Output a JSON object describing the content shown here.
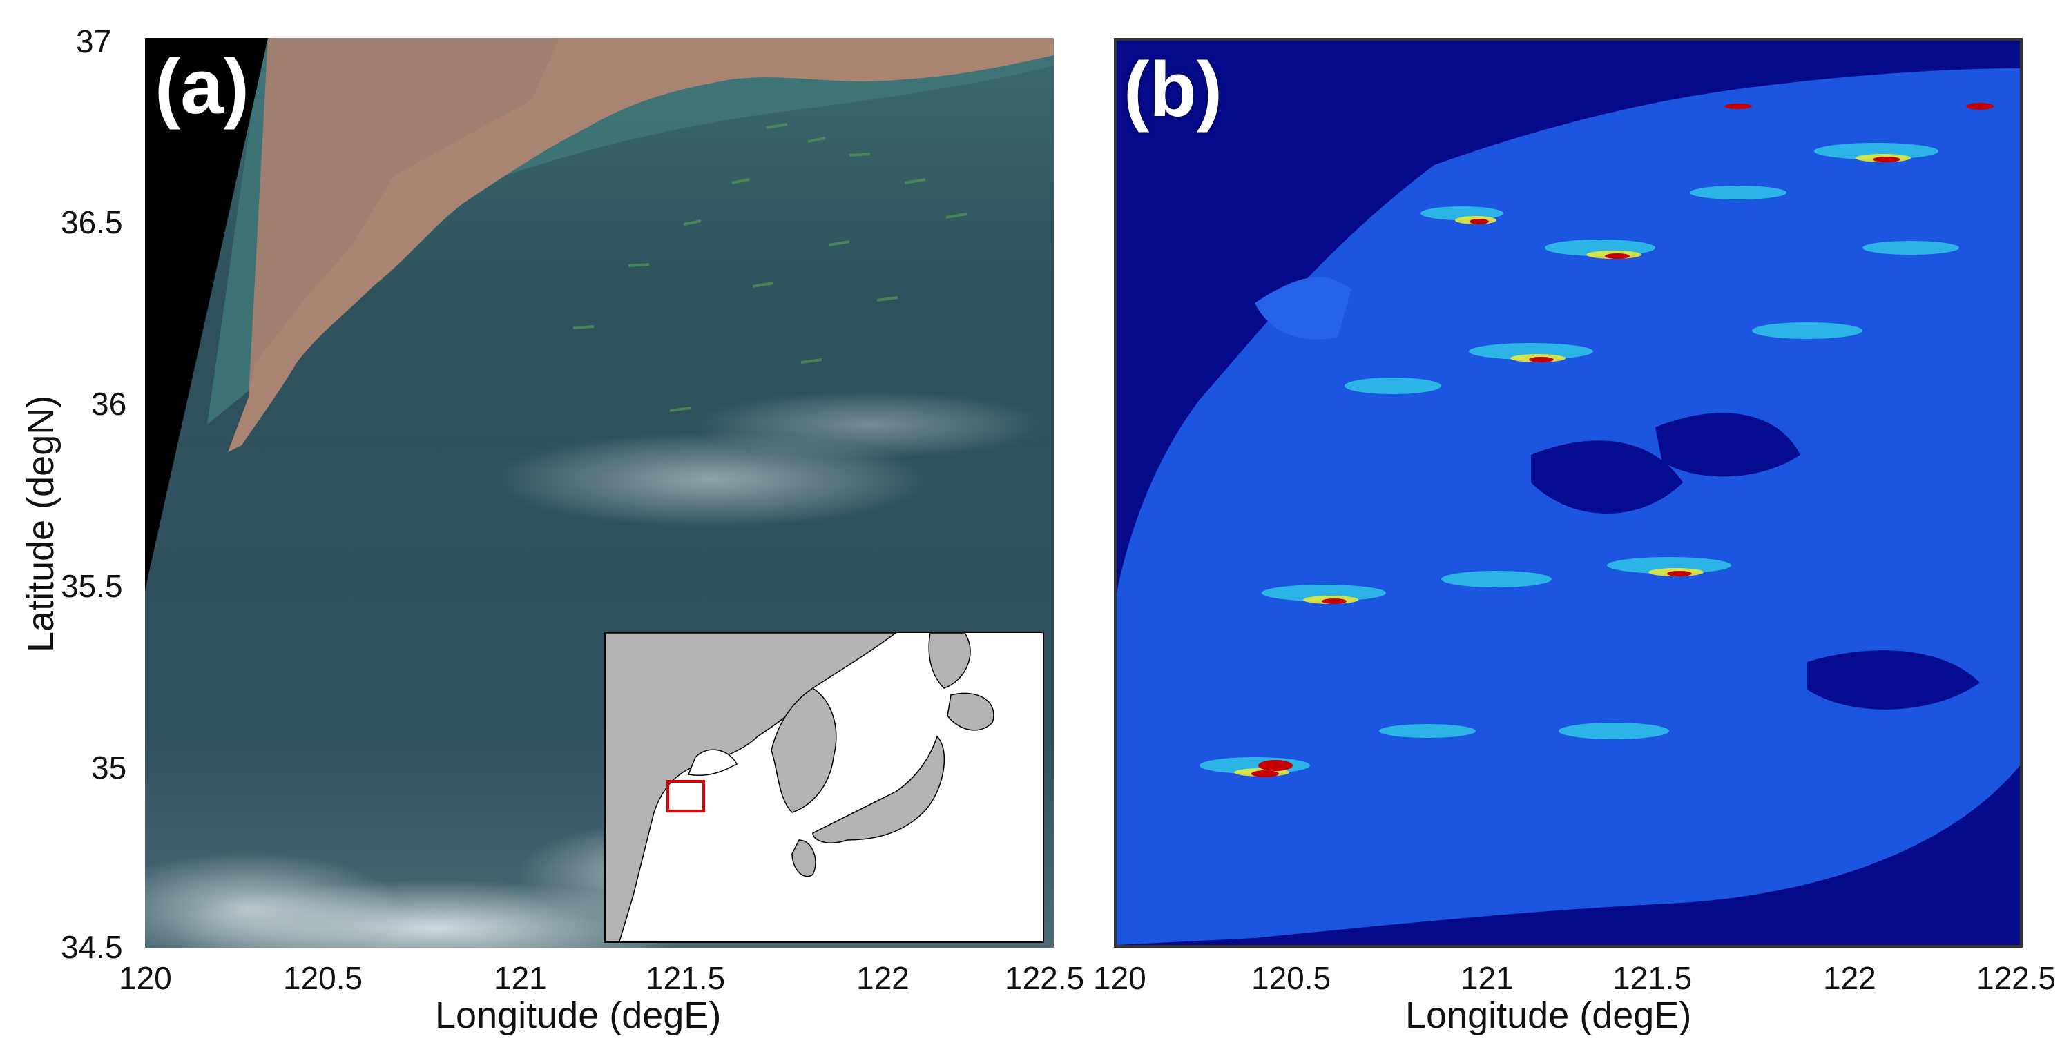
{
  "panel_a": {
    "label": "(a)",
    "xlabel": "Longitude (degE)",
    "ylabel": "Latitude (degN)",
    "xticks": [
      "120",
      "120.5",
      "121",
      "121.5",
      "122",
      "122.5"
    ],
    "yticks": [
      "37",
      "36.5",
      "36",
      "35.5",
      "35",
      "34.5"
    ],
    "inset": {
      "description_icon": "locator-map",
      "highlight_color": "#e00000"
    }
  },
  "panel_b": {
    "label": "(b)",
    "xlabel": "Longitude (degE)",
    "xticks": [
      "120",
      "120.5",
      "121",
      "121.5",
      "122",
      "122.5"
    ]
  },
  "colors": {
    "land": "#a98473",
    "sea": "#2f4f58",
    "coastal_water": "#3d7274",
    "night_black": "#000000",
    "map_background": "#050a8a",
    "map_water": "#1c55e0",
    "hot_red": "#c40000",
    "inset_land": "#b4b4b4"
  }
}
